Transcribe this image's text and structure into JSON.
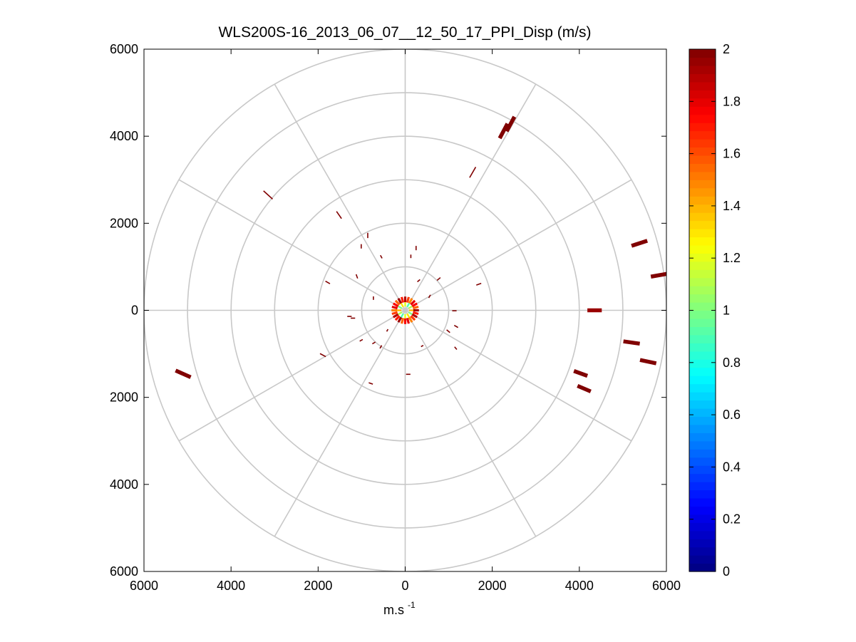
{
  "chart_data": {
    "type": "polar-scatter",
    "title": "WLS200S-16_2013_06_07__12_50_17_PPI_Disp (m/s)",
    "xlabel": "m.s",
    "xlabel_superscript": "-1",
    "x_ticks": [
      "6000",
      "4000",
      "2000",
      "0",
      "2000",
      "4000",
      "6000"
    ],
    "y_ticks": [
      "6000",
      "4000",
      "2000",
      "0",
      "2000",
      "4000",
      "6000"
    ],
    "xlim": [
      -6000,
      6000
    ],
    "ylim": [
      -6000,
      6000
    ],
    "rings": [
      1000,
      2000,
      3000,
      4000,
      5000,
      6000
    ],
    "spokes_deg": [
      0,
      30,
      60,
      90,
      120,
      150,
      180,
      210,
      240,
      270,
      300,
      330
    ],
    "colorbar": {
      "min": 0,
      "max": 2,
      "ticks": [
        "0",
        "0.2",
        "0.4",
        "0.6",
        "0.8",
        "1",
        "1.2",
        "1.4",
        "1.6",
        "1.8",
        "2"
      ],
      "colormap": "jet"
    },
    "center_cluster": {
      "x": 0,
      "y": 0,
      "radius": 250
    },
    "points": [
      {
        "x": 2420,
        "y": 4280,
        "value": 2,
        "len": 380,
        "angle": 28
      },
      {
        "x": 2260,
        "y": 4120,
        "value": 2,
        "len": 380,
        "angle": 28
      },
      {
        "x": 1550,
        "y": 3170,
        "value": 2,
        "len": 280,
        "angle": 30
      },
      {
        "x": -3150,
        "y": 2650,
        "value": 2,
        "len": 280,
        "angle": -48
      },
      {
        "x": -1520,
        "y": 2190,
        "value": 2,
        "len": 200,
        "angle": -35
      },
      {
        "x": 5380,
        "y": 1540,
        "value": 2,
        "len": 380,
        "angle": 72
      },
      {
        "x": 5850,
        "y": 810,
        "value": 2,
        "len": 420,
        "angle": 80
      },
      {
        "x": 4350,
        "y": 0,
        "value": 1.95,
        "len": 330,
        "angle": 90
      },
      {
        "x": 5200,
        "y": -740,
        "value": 2,
        "len": 380,
        "angle": 98
      },
      {
        "x": 5580,
        "y": -1180,
        "value": 2,
        "len": 380,
        "angle": 102
      },
      {
        "x": 4030,
        "y": -1450,
        "value": 2,
        "len": 330,
        "angle": 110
      },
      {
        "x": 4110,
        "y": -1800,
        "value": 2,
        "len": 330,
        "angle": 113
      },
      {
        "x": -5100,
        "y": -1460,
        "value": 2,
        "len": 380,
        "angle": -66
      },
      {
        "x": -1890,
        "y": -1030,
        "value": 2,
        "len": 150,
        "angle": -62
      },
      {
        "x": -860,
        "y": 1720,
        "value": 2,
        "len": 120,
        "angle": 0
      },
      {
        "x": -1010,
        "y": 1470,
        "value": 2,
        "len": 100,
        "angle": 0
      },
      {
        "x": -550,
        "y": 1230,
        "value": 2,
        "len": 80,
        "angle": -30
      },
      {
        "x": 250,
        "y": 1430,
        "value": 2,
        "len": 100,
        "angle": 0
      },
      {
        "x": 130,
        "y": 1240,
        "value": 2,
        "len": 80,
        "angle": 0
      },
      {
        "x": -1780,
        "y": 640,
        "value": 2,
        "len": 120,
        "angle": -60
      },
      {
        "x": -1110,
        "y": 780,
        "value": 2,
        "len": 100,
        "angle": -20
      },
      {
        "x": 770,
        "y": 720,
        "value": 2,
        "len": 100,
        "angle": 50
      },
      {
        "x": 310,
        "y": 680,
        "value": 2,
        "len": 80,
        "angle": 50
      },
      {
        "x": 1690,
        "y": 600,
        "value": 2,
        "len": 120,
        "angle": 70
      },
      {
        "x": -730,
        "y": 280,
        "value": 2,
        "len": 80,
        "angle": 0
      },
      {
        "x": 560,
        "y": 320,
        "value": 2,
        "len": 80,
        "angle": 30
      },
      {
        "x": -1280,
        "y": -140,
        "value": 2,
        "len": 100,
        "angle": 90
      },
      {
        "x": -1200,
        "y": -180,
        "value": 2,
        "len": 100,
        "angle": 90
      },
      {
        "x": 1130,
        "y": -10,
        "value": 2,
        "len": 100,
        "angle": 90
      },
      {
        "x": 1170,
        "y": -370,
        "value": 2,
        "len": 100,
        "angle": 120
      },
      {
        "x": 990,
        "y": -480,
        "value": 2,
        "len": 100,
        "angle": 130
      },
      {
        "x": -1010,
        "y": -690,
        "value": 2,
        "len": 80,
        "angle": 60
      },
      {
        "x": -720,
        "y": -750,
        "value": 2,
        "len": 80,
        "angle": 60
      },
      {
        "x": -560,
        "y": -840,
        "value": 2,
        "len": 80,
        "angle": 30
      },
      {
        "x": -410,
        "y": -460,
        "value": 2,
        "len": 60,
        "angle": 30
      },
      {
        "x": 390,
        "y": -820,
        "value": 2,
        "len": 60,
        "angle": 60
      },
      {
        "x": 1160,
        "y": -870,
        "value": 2,
        "len": 80,
        "angle": 140
      },
      {
        "x": -790,
        "y": -1680,
        "value": 2,
        "len": 100,
        "angle": 110
      },
      {
        "x": 70,
        "y": -1470,
        "value": 2,
        "len": 100,
        "angle": 90
      }
    ]
  }
}
